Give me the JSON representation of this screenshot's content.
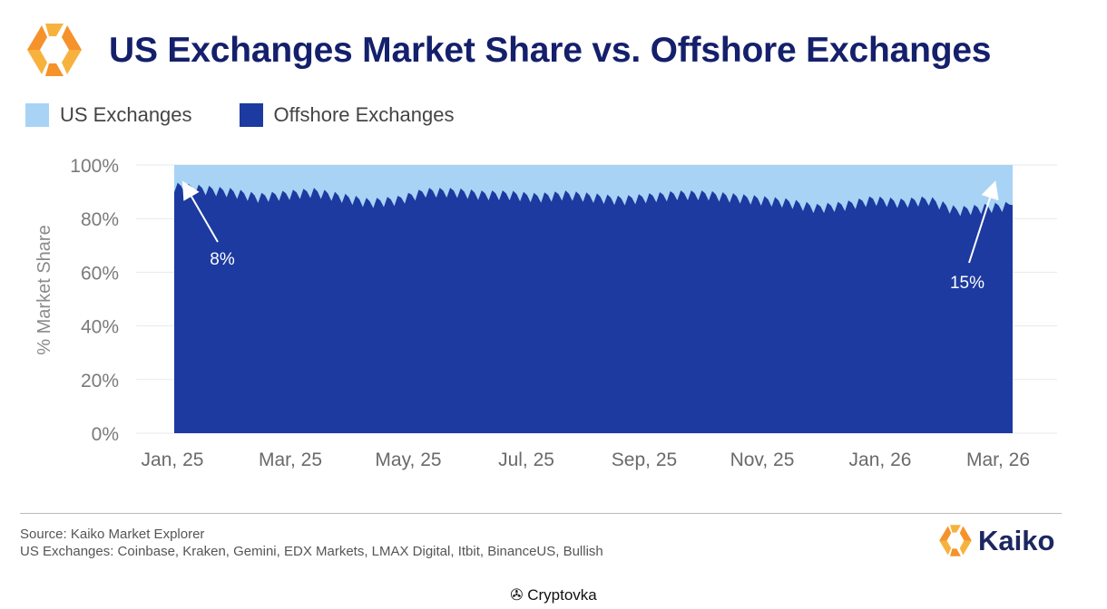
{
  "header": {
    "title": "US Exchanges Market Share vs. Offshore Exchanges",
    "logo_icon": "kaiko-logo-icon"
  },
  "colors": {
    "us": "#a8d3f5",
    "offshore": "#1c3aa0",
    "title": "#14206b",
    "logo_orange": "#f5922b",
    "logo_amber": "#f7b23e"
  },
  "legend": {
    "items": [
      {
        "label": "US Exchanges",
        "color": "#a8d3f5"
      },
      {
        "label": "Offshore Exchanges",
        "color": "#1c3aa0"
      }
    ]
  },
  "chart_data": {
    "type": "area",
    "stacked": true,
    "normalized_percent": true,
    "ylabel": "% Market Share",
    "xlabel": "",
    "ylim": [
      0,
      100
    ],
    "yticks": [
      "100%",
      "80%",
      "60%",
      "40%",
      "20%",
      "0%"
    ],
    "ytick_values": [
      100,
      80,
      60,
      40,
      20,
      0
    ],
    "xticks": [
      "Jan, 25",
      "Mar, 25",
      "May, 25",
      "Jul, 25",
      "Sep, 25",
      "Nov, 25",
      "Jan, 26",
      "Mar, 26"
    ],
    "x_range": [
      "2025-01-01",
      "2026-03-20"
    ],
    "series": [
      {
        "name": "US Exchanges",
        "values": [
          8,
          9,
          10,
          12,
          11,
          10,
          12,
          14,
          13,
          10,
          10,
          11,
          11,
          12,
          11,
          12,
          13,
          12,
          11,
          11,
          12,
          13,
          14,
          16,
          15,
          13,
          14,
          13,
          17,
          16,
          15
        ]
      },
      {
        "name": "Offshore Exchanges",
        "values": [
          92,
          91,
          90,
          88,
          89,
          90,
          88,
          86,
          87,
          90,
          90,
          89,
          89,
          88,
          89,
          88,
          87,
          88,
          89,
          89,
          88,
          87,
          86,
          84,
          85,
          87,
          86,
          87,
          83,
          84,
          85
        ]
      }
    ],
    "annotations": [
      {
        "text": "8%",
        "x_index": 0,
        "value": 8
      },
      {
        "text": "15%",
        "x_index": 30,
        "value": 15
      }
    ]
  },
  "footer": {
    "source": "Source: Kaiko Market Explorer",
    "note": "US Exchanges: Coinbase, Kraken, Gemini, EDX Markets, LMAX Digital, Itbit, BinanceUS, Bullish",
    "brand": "Kaiko",
    "watermark": "Cryptovka",
    "watermark_icon": "cryptovka-logo-icon"
  }
}
